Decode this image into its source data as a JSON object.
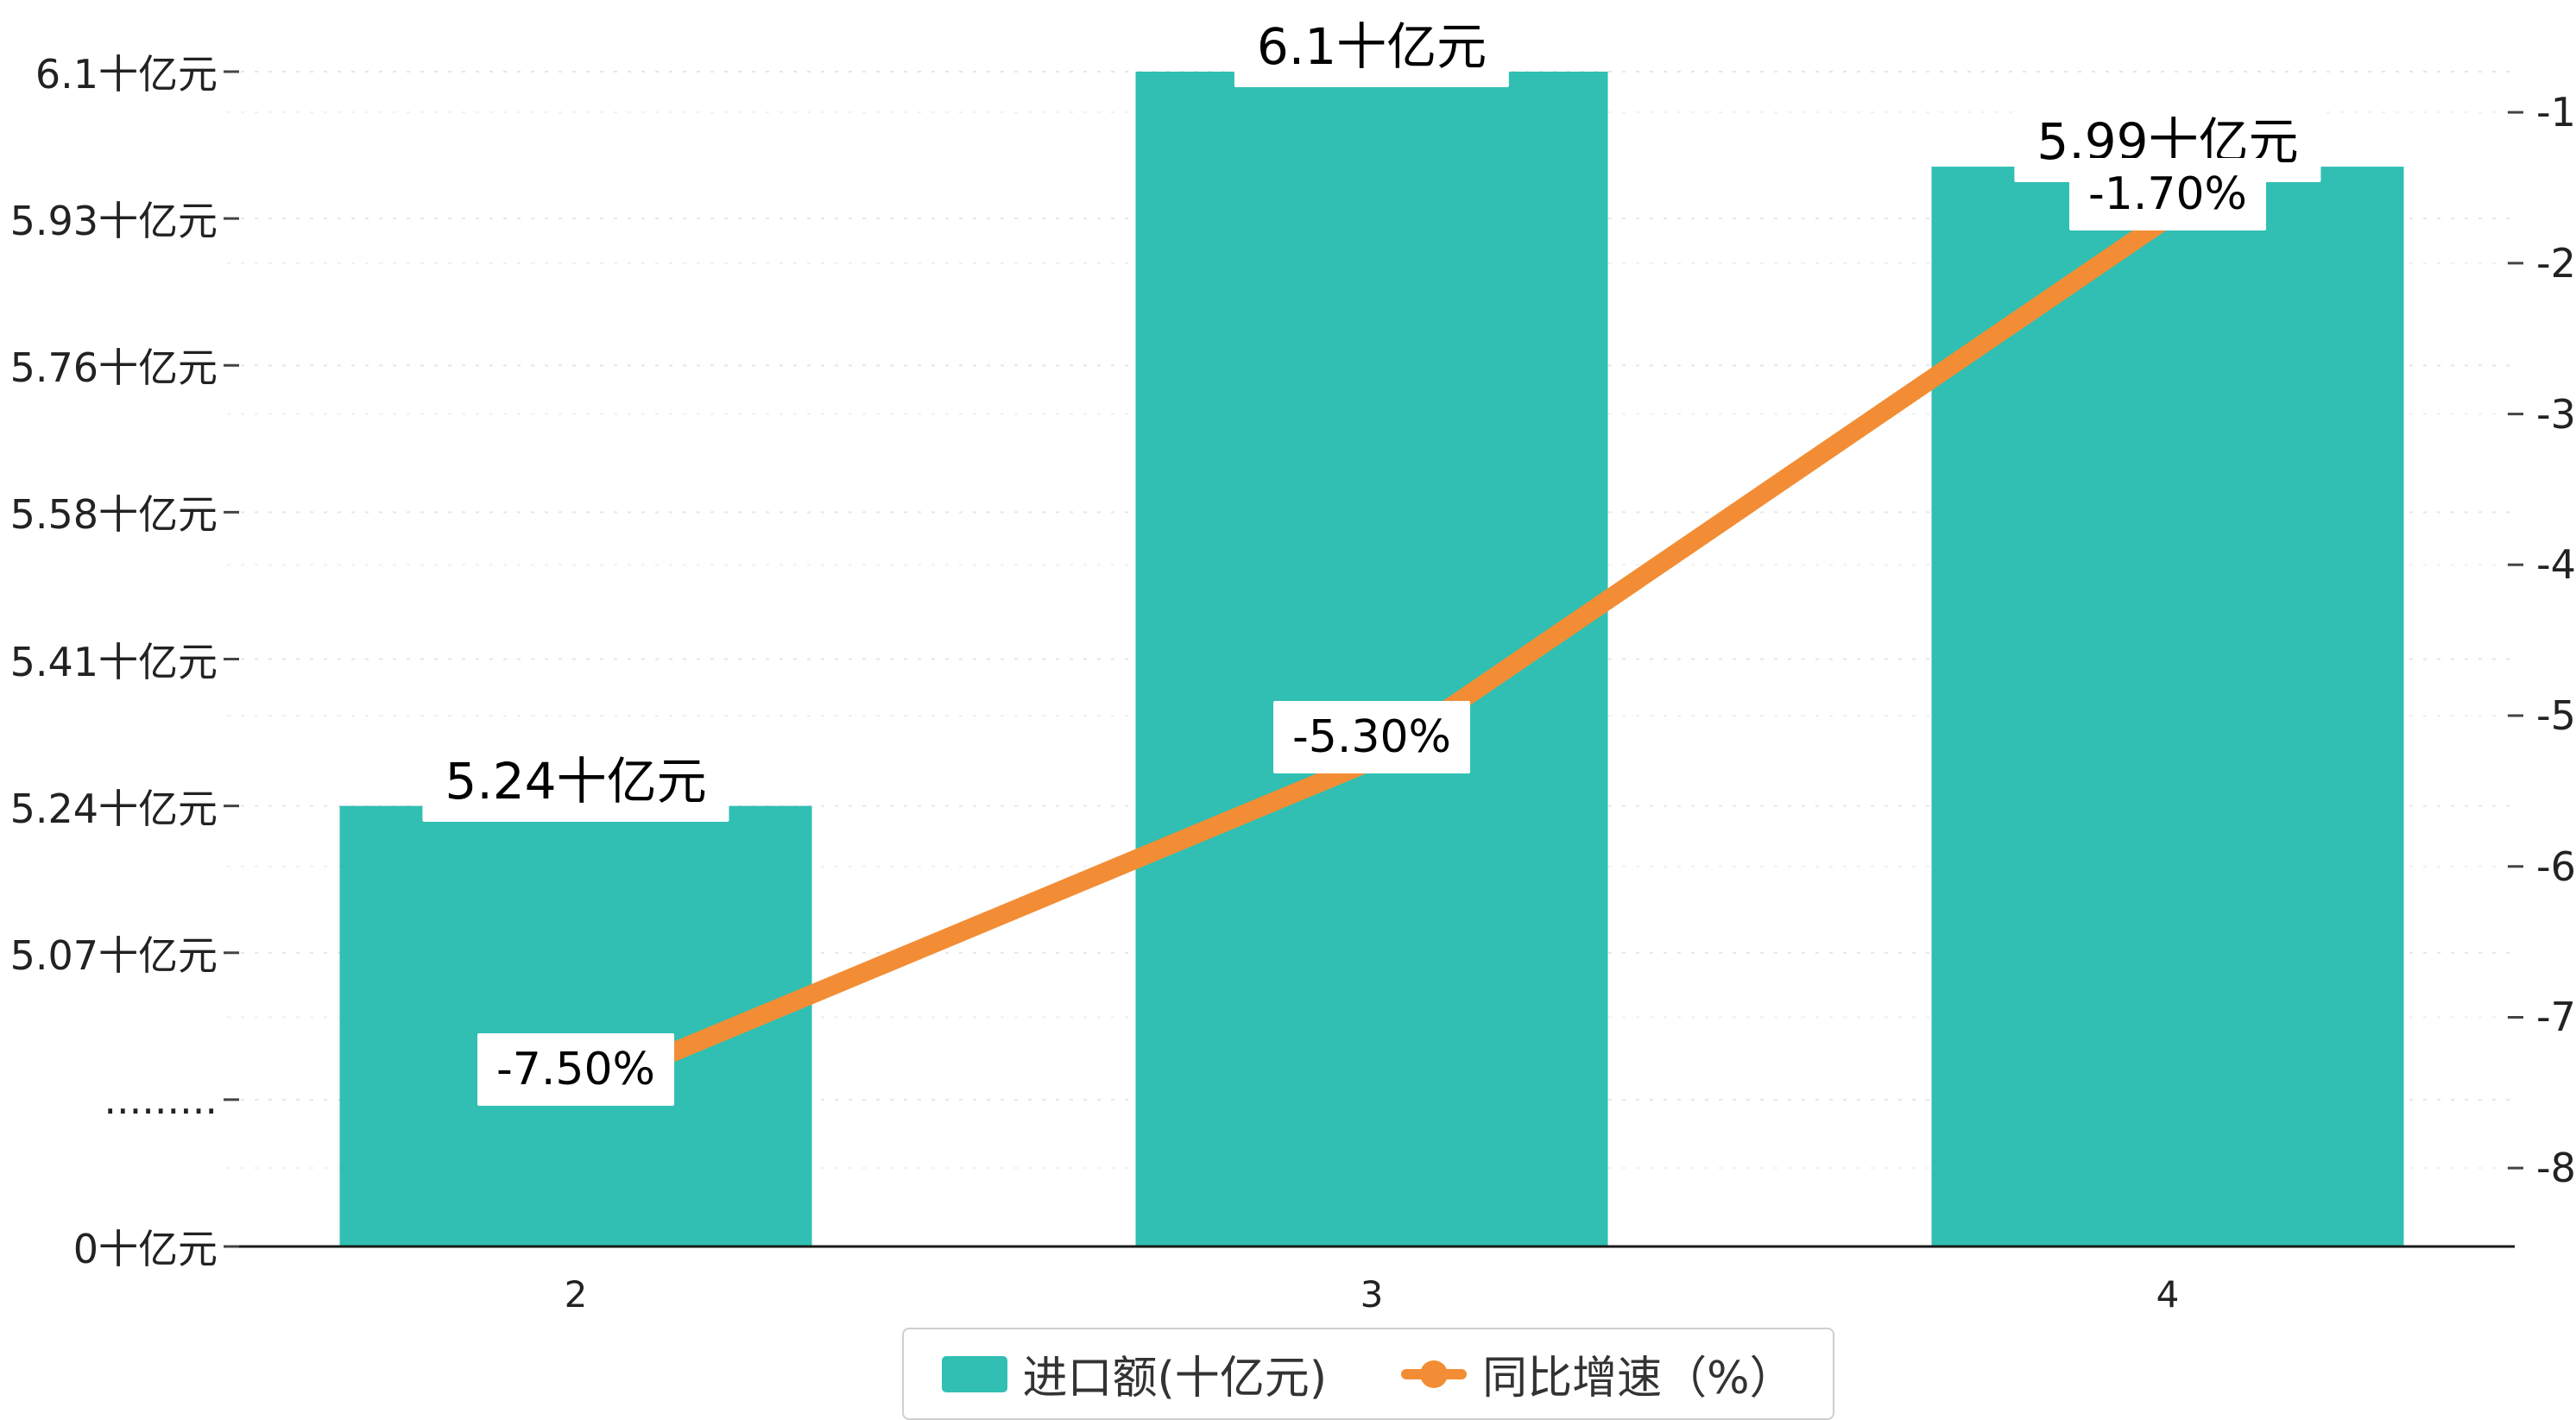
{
  "chart_data": {
    "type": "combo",
    "title": "",
    "categories": [
      "2",
      "3",
      "4"
    ],
    "series": [
      {
        "name": "进口额(十亿元)",
        "type": "bar",
        "values": [
          5.24,
          6.1,
          5.99
        ],
        "labels": [
          "5.24十亿元",
          "6.1十亿元",
          "5.99十亿元"
        ],
        "color": "#30bfb2"
      },
      {
        "name": "同比增速（%）",
        "type": "line",
        "values": [
          -7.5,
          -5.3,
          -1.7
        ],
        "labels": [
          "-7.50%",
          "-5.30%",
          "-1.70%"
        ],
        "color": "#f28d35"
      }
    ],
    "left_axis": {
      "tick_labels": [
        "0十亿元",
        ".........",
        "5.07十亿元",
        "5.24十亿元",
        "5.41十亿元",
        "5.58十亿元",
        "5.76十亿元",
        "5.93十亿元",
        "6.1十亿元"
      ],
      "tick_values": [
        0,
        null,
        5.07,
        5.24,
        5.41,
        5.58,
        5.76,
        5.93,
        6.1
      ],
      "axis_break": true
    },
    "right_axis": {
      "tick_labels": [
        "-1",
        "-2",
        "-3",
        "-4",
        "-5",
        "-6",
        "-7",
        "-8"
      ],
      "tick_values": [
        -1,
        -2,
        -3,
        -4,
        -5,
        -6,
        -7,
        -8
      ],
      "top_value": -0.73,
      "bottom_value": -8.52
    },
    "grid": {
      "horizontal_dashed": true,
      "color": "#e6e6e6"
    },
    "legend_position": "bottom"
  }
}
